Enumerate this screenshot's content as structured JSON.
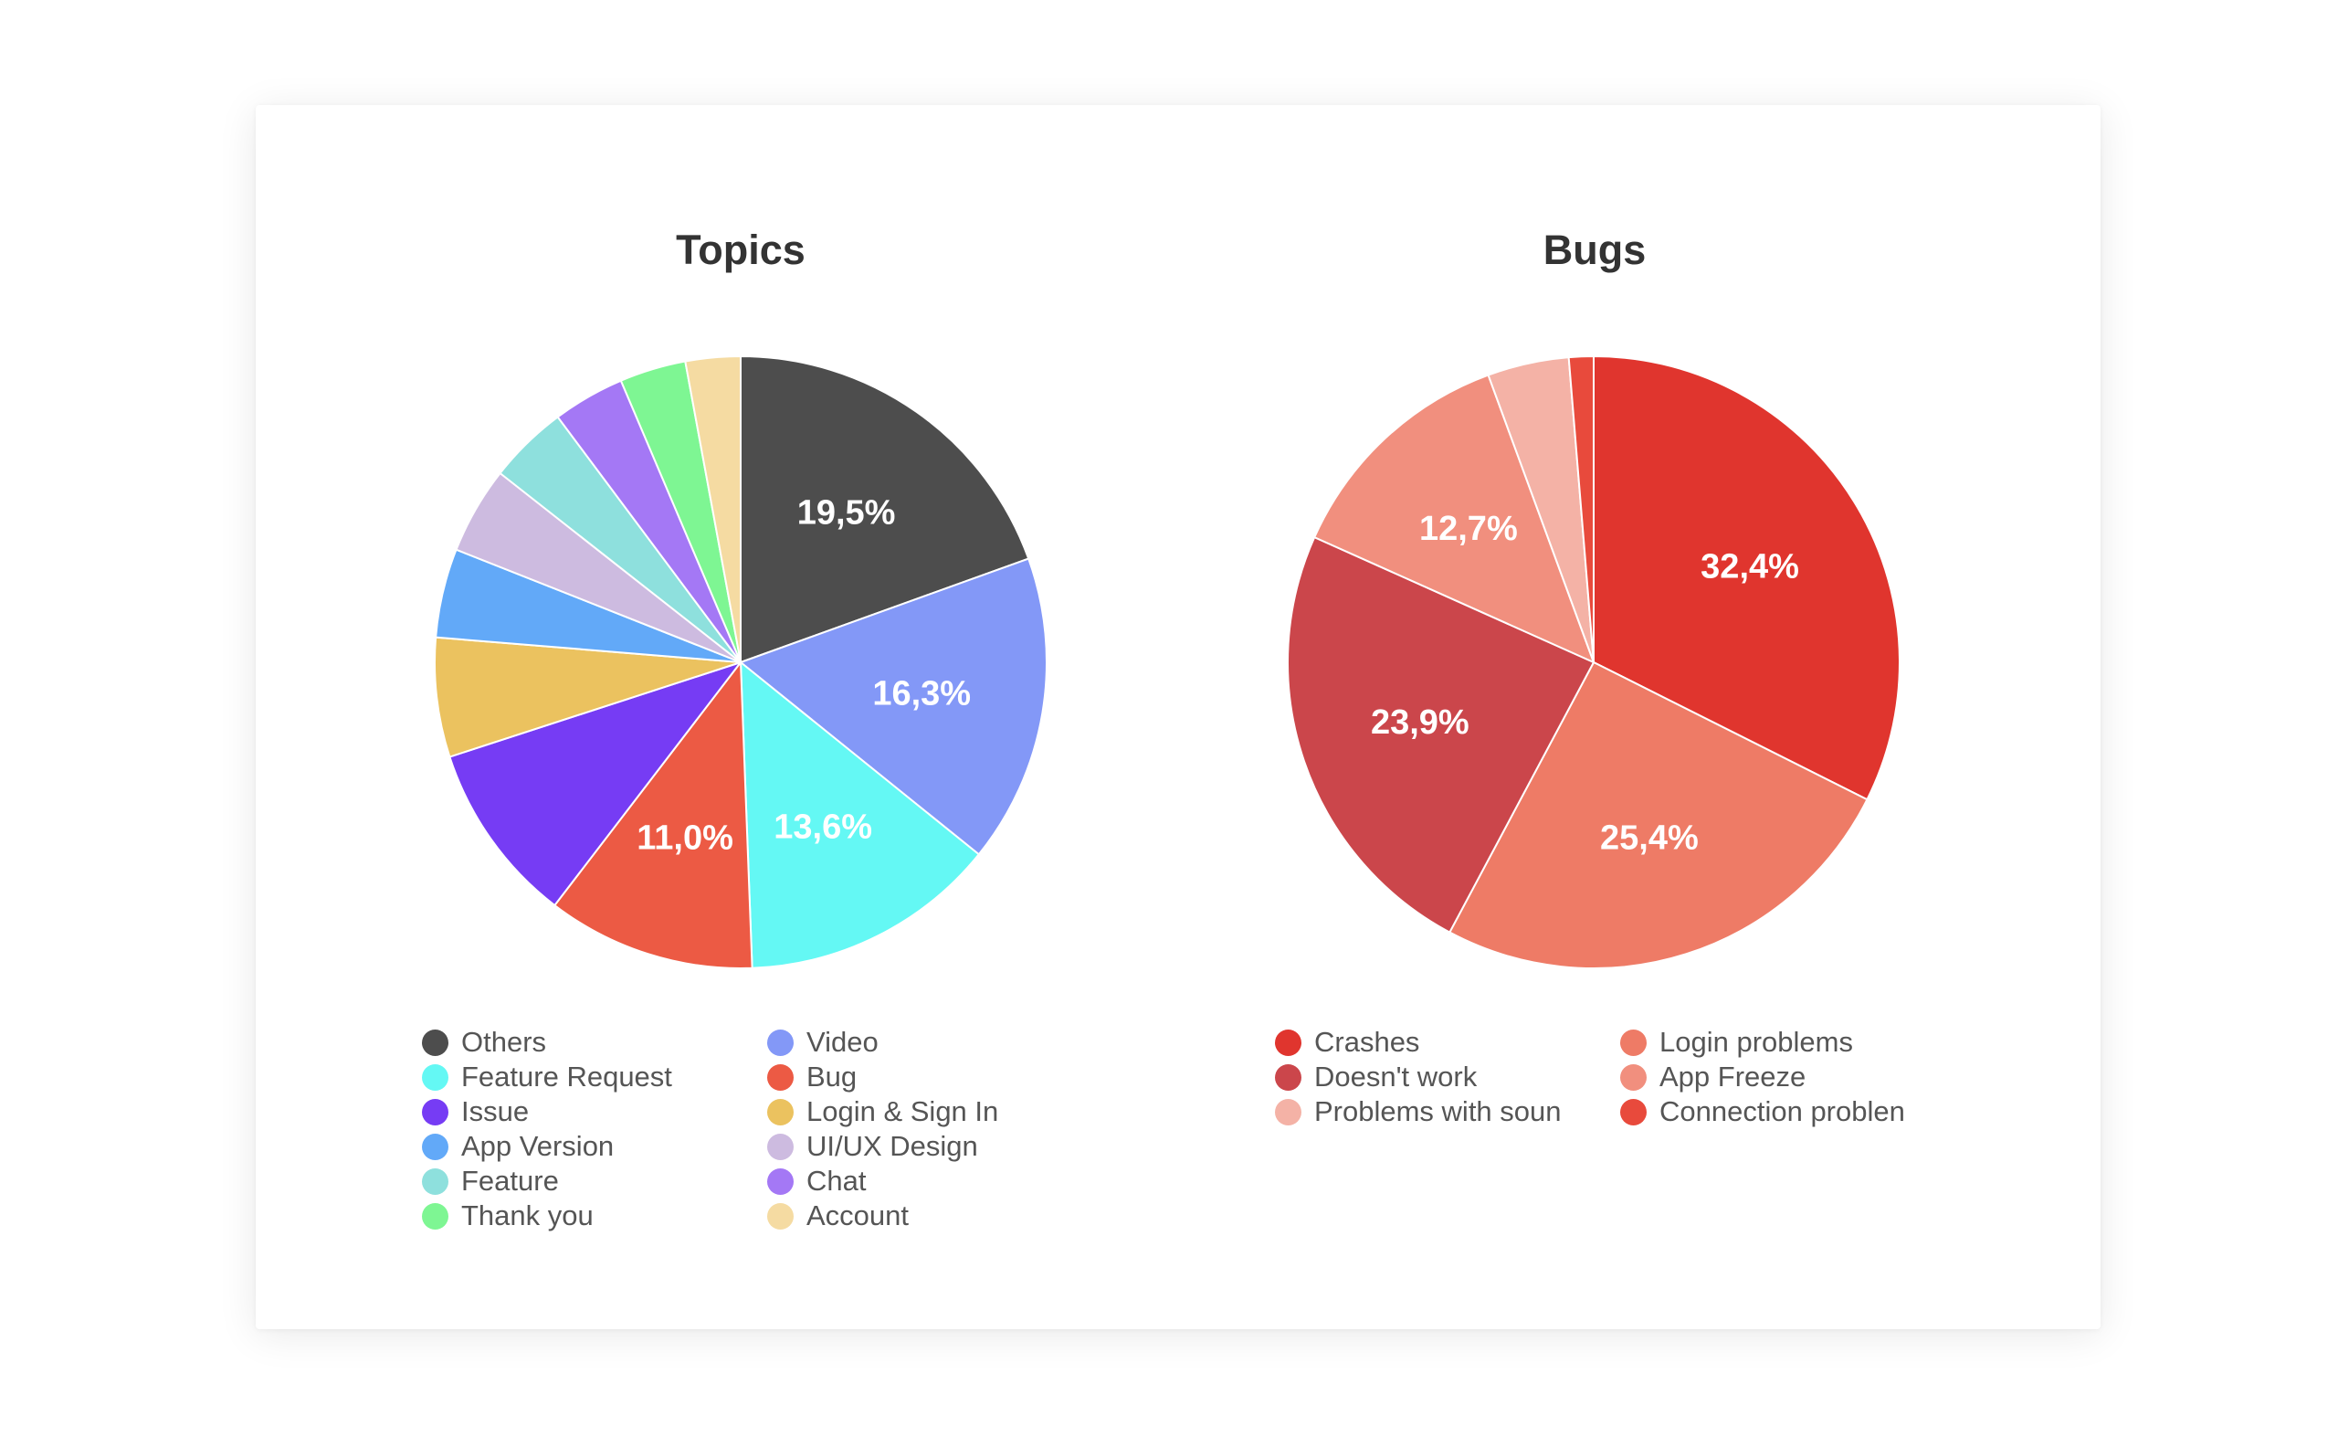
{
  "chart_data": [
    {
      "type": "pie",
      "title": "Topics",
      "legend_position": "bottom",
      "slices": [
        {
          "label": "Others",
          "value": 19.5,
          "value_label": "19,5%",
          "color": "#4d4d4d"
        },
        {
          "label": "Video",
          "value": 16.3,
          "value_label": "16,3%",
          "color": "#8398f7"
        },
        {
          "label": "Feature Request",
          "value": 13.6,
          "value_label": "13,6%",
          "color": "#64f8f4"
        },
        {
          "label": "Bug",
          "value": 11.0,
          "value_label": "11,0%",
          "color": "#ec5a44"
        },
        {
          "label": "Issue",
          "value": 9.6,
          "value_label": "",
          "color": "#763cf4"
        },
        {
          "label": "Login & Sign In",
          "value": 6.3,
          "value_label": "",
          "color": "#ebc25f"
        },
        {
          "label": "App Version",
          "value": 4.7,
          "value_label": "",
          "color": "#62a9f8"
        },
        {
          "label": "UI/UX Design",
          "value": 4.6,
          "value_label": "",
          "color": "#cdbbe0"
        },
        {
          "label": "Feature",
          "value": 4.2,
          "value_label": "",
          "color": "#8ee0dd"
        },
        {
          "label": "Chat",
          "value": 3.8,
          "value_label": "",
          "color": "#a478f5"
        },
        {
          "label": "Thank you",
          "value": 3.5,
          "value_label": "",
          "color": "#7ef693"
        },
        {
          "label": "Account",
          "value": 2.9,
          "value_label": "",
          "color": "#f5dba2"
        }
      ]
    },
    {
      "type": "pie",
      "title": "Bugs",
      "legend_position": "bottom",
      "slices": [
        {
          "label": "Crashes",
          "value": 32.4,
          "value_label": "32,4%",
          "color": "#e0352e"
        },
        {
          "label": "Login problems",
          "value": 25.4,
          "value_label": "25,4%",
          "color": "#ee7b66"
        },
        {
          "label": "Doesn't work",
          "value": 23.9,
          "value_label": "23,9%",
          "color": "#cb464b"
        },
        {
          "label": "App Freeze",
          "value": 12.7,
          "value_label": "12,7%",
          "color": "#f18f7e"
        },
        {
          "label": "Problems with soun",
          "value": 4.3,
          "value_label": "",
          "color": "#f4b2a6"
        },
        {
          "label": "Connection problen",
          "value": 1.3,
          "value_label": "",
          "color": "#e84a3c"
        }
      ]
    }
  ]
}
